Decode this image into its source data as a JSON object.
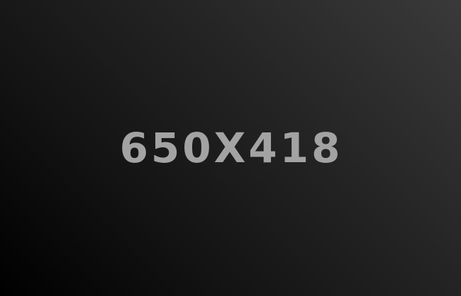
{
  "placeholder": {
    "label": "650X418",
    "text_color": "#a3a3a3",
    "background_light": "#3a3a3a",
    "background_dark": "#000000"
  }
}
